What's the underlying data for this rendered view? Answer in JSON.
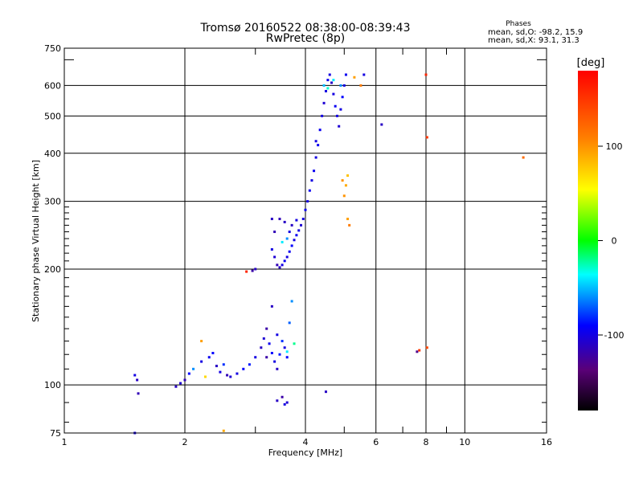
{
  "chart_data": {
    "type": "scatter",
    "title": "Tromsø 20160522 08:38:00-08:39:43",
    "subtitle": "RwPretec (8p)",
    "xlabel": "Frequency [MHz]",
    "ylabel": "Stationary phase Virtual Height [km]",
    "x_scale": "log",
    "y_scale": "log",
    "xlim": [
      1,
      16
    ],
    "ylim": [
      75,
      750
    ],
    "x_ticks": [
      1,
      2,
      4,
      6,
      8,
      10,
      16
    ],
    "y_ticks": [
      75,
      100,
      200,
      300,
      400,
      500,
      600,
      750
    ],
    "x_minor_ticks": [
      3,
      5,
      7,
      9
    ],
    "y_minor_ticks": [
      700
    ],
    "grid": true,
    "stats": {
      "heading": "Phases",
      "line_o": "mean, sd,O: -98.2, 15.9",
      "line_x": "mean, sd,X:  93.1, 31.3"
    },
    "colorbar": {
      "label": "[deg]",
      "range": [
        -180,
        180
      ],
      "ticks": [
        100,
        0,
        -100
      ]
    },
    "series": [
      {
        "points": [
          [
            1.5,
            106,
            -100
          ],
          [
            1.52,
            103,
            -110
          ],
          [
            1.53,
            95,
            -115
          ],
          [
            1.5,
            75,
            -100
          ],
          [
            1.9,
            99,
            -110
          ],
          [
            1.95,
            101,
            -105
          ],
          [
            2.0,
            103,
            -115
          ],
          [
            2.05,
            107,
            -90
          ],
          [
            2.1,
            110,
            -60
          ],
          [
            2.2,
            115,
            -100
          ],
          [
            2.3,
            118,
            -95
          ],
          [
            2.35,
            121,
            -90
          ],
          [
            2.4,
            112,
            -110
          ],
          [
            2.45,
            108,
            -100
          ],
          [
            2.5,
            113,
            -80
          ],
          [
            2.55,
            106,
            -115
          ],
          [
            2.6,
            105,
            -105
          ],
          [
            2.7,
            107,
            -100
          ],
          [
            2.8,
            110,
            -90
          ],
          [
            2.9,
            113,
            -85
          ],
          [
            3.0,
            118,
            -100
          ],
          [
            3.1,
            125,
            -110
          ],
          [
            3.15,
            132,
            -105
          ],
          [
            3.2,
            140,
            -120
          ],
          [
            3.25,
            128,
            -95
          ],
          [
            3.3,
            121,
            -90
          ],
          [
            3.35,
            115,
            -100
          ],
          [
            3.4,
            110,
            -110
          ],
          [
            3.45,
            120,
            -85
          ],
          [
            3.5,
            130,
            -80
          ],
          [
            3.55,
            125,
            -100
          ],
          [
            3.6,
            118,
            -90
          ],
          [
            3.65,
            145,
            -70
          ],
          [
            3.7,
            165,
            -60
          ],
          [
            3.3,
            160,
            -110
          ],
          [
            3.2,
            118,
            -120
          ],
          [
            3.4,
            135,
            -100
          ],
          [
            3.6,
            122,
            -40
          ],
          [
            3.75,
            128,
            -20
          ],
          [
            3.4,
            91,
            -110
          ],
          [
            3.5,
            93,
            -120
          ],
          [
            3.55,
            89,
            -100
          ],
          [
            3.6,
            90,
            -105
          ],
          [
            2.5,
            76,
            90
          ],
          [
            2.2,
            130,
            95
          ],
          [
            2.25,
            105,
            70
          ],
          [
            3.0,
            200,
            -110
          ],
          [
            2.95,
            198,
            -120
          ],
          [
            2.85,
            197,
            160
          ],
          [
            3.3,
            270,
            -110
          ],
          [
            3.35,
            250,
            -115
          ],
          [
            3.3,
            225,
            -100
          ],
          [
            3.35,
            215,
            -105
          ],
          [
            3.4,
            205,
            -115
          ],
          [
            3.45,
            202,
            -110
          ],
          [
            3.5,
            205,
            -100
          ],
          [
            3.55,
            210,
            -95
          ],
          [
            3.6,
            215,
            -100
          ],
          [
            3.65,
            222,
            -95
          ],
          [
            3.7,
            230,
            -90
          ],
          [
            3.75,
            238,
            -100
          ],
          [
            3.8,
            245,
            -95
          ],
          [
            3.85,
            252,
            -100
          ],
          [
            3.9,
            260,
            -105
          ],
          [
            3.95,
            270,
            -100
          ],
          [
            4.0,
            285,
            -95
          ],
          [
            4.05,
            300,
            -100
          ],
          [
            4.1,
            320,
            -95
          ],
          [
            4.15,
            340,
            -100
          ],
          [
            4.2,
            360,
            -95
          ],
          [
            4.25,
            390,
            -100
          ],
          [
            4.3,
            420,
            -95
          ],
          [
            3.5,
            235,
            -40
          ],
          [
            3.6,
            240,
            -60
          ],
          [
            3.7,
            260,
            -110
          ],
          [
            3.8,
            268,
            -100
          ],
          [
            3.45,
            270,
            -115
          ],
          [
            3.55,
            265,
            -110
          ],
          [
            3.65,
            250,
            -100
          ],
          [
            4.25,
            430,
            -100
          ],
          [
            4.35,
            460,
            -95
          ],
          [
            4.4,
            500,
            -100
          ],
          [
            4.45,
            540,
            -105
          ],
          [
            4.5,
            580,
            -100
          ],
          [
            4.55,
            620,
            -95
          ],
          [
            4.6,
            640,
            -100
          ],
          [
            4.65,
            610,
            -110
          ],
          [
            4.7,
            570,
            -100
          ],
          [
            4.75,
            530,
            -95
          ],
          [
            4.8,
            500,
            -100
          ],
          [
            4.85,
            470,
            -105
          ],
          [
            4.9,
            520,
            -100
          ],
          [
            4.95,
            560,
            -90
          ],
          [
            5.0,
            600,
            -100
          ],
          [
            5.05,
            640,
            -95
          ],
          [
            4.45,
            600,
            -50
          ],
          [
            4.55,
            590,
            -30
          ],
          [
            4.7,
            620,
            -40
          ],
          [
            4.9,
            600,
            -60
          ],
          [
            5.3,
            630,
            95
          ],
          [
            5.5,
            600,
            110
          ],
          [
            5.6,
            640,
            -100
          ],
          [
            5.15,
            260,
            110
          ],
          [
            5.1,
            270,
            95
          ],
          [
            5.0,
            310,
            100
          ],
          [
            5.05,
            330,
            90
          ],
          [
            5.1,
            350,
            80
          ],
          [
            4.95,
            340,
            100
          ],
          [
            6.2,
            475,
            -110
          ],
          [
            7.6,
            122,
            -130
          ],
          [
            7.7,
            123,
            150
          ],
          [
            8.0,
            640,
            160
          ],
          [
            8.05,
            440,
            150
          ],
          [
            8.05,
            125,
            140
          ],
          [
            14.0,
            390,
            120
          ],
          [
            4.5,
            96,
            -110
          ]
        ]
      }
    ]
  }
}
